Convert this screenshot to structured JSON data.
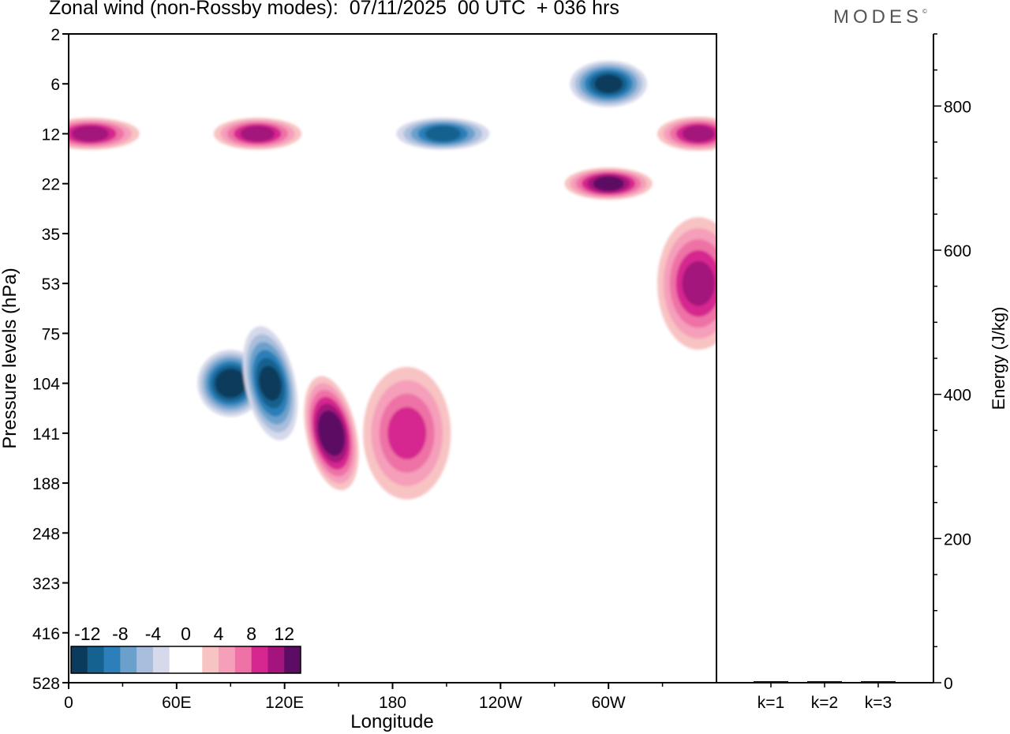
{
  "title": "Zonal wind (non-Rossby modes):  07/11/2025  00 UTC  + 036 hrs",
  "brand": "MODES",
  "brand_mark": "©",
  "chart_data": [
    {
      "type": "heatmap",
      "title": "Zonal wind (non-Rossby modes):  07/11/2025  00 UTC  + 036 hrs",
      "xlabel": "Longitude",
      "ylabel": "Pressure levels (hPa)",
      "x_ticks": [
        {
          "label": "0",
          "lon": 0
        },
        {
          "label": "60E",
          "lon": 60
        },
        {
          "label": "120E",
          "lon": 120
        },
        {
          "label": "180",
          "lon": 180
        },
        {
          "label": "120W",
          "lon": 240
        },
        {
          "label": "60W",
          "lon": 300
        }
      ],
      "xlim": [
        0,
        360
      ],
      "y_levels": [
        "2",
        "6",
        "12",
        "22",
        "35",
        "53",
        "75",
        "104",
        "141",
        "188",
        "248",
        "323",
        "416",
        "528"
      ],
      "colorbar": {
        "labels": [
          "-12",
          "-8",
          "-4",
          "0",
          "4",
          "8",
          "12"
        ],
        "colors": [
          "#0b3b5c",
          "#15618f",
          "#2c7fb8",
          "#6aa0cb",
          "#a8bedc",
          "#d5d9ea",
          "#ffffff",
          "#ffffff",
          "#f8c3c3",
          "#f59fbb",
          "#ee72a6",
          "#d6278f",
          "#a3157c",
          "#5c0d63"
        ]
      },
      "features": [
        {
          "lon": 12,
          "level": "12",
          "value": 10
        },
        {
          "lon": 105,
          "level": "12",
          "value": 9
        },
        {
          "lon": 208,
          "level": "12",
          "value": -9
        },
        {
          "lon": 300,
          "level": "6",
          "value": -11
        },
        {
          "lon": 350,
          "level": "12",
          "value": 10
        },
        {
          "lon": 300,
          "level": "22",
          "value": 11
        },
        {
          "lon": 90,
          "level": "104",
          "value": -13
        },
        {
          "lon": 112,
          "level": "104",
          "value": -12
        },
        {
          "lon": 146,
          "level": "141",
          "value": 13
        },
        {
          "lon": 188,
          "level": "141",
          "value": 8
        },
        {
          "lon": 350,
          "level": "53",
          "value": 9
        }
      ]
    },
    {
      "type": "bar",
      "ylabel": "Energy (J/kg)",
      "categories": [
        "k=1",
        "k=2",
        "k=3"
      ],
      "values": [
        2,
        1,
        1
      ],
      "ylim": [
        0,
        900
      ],
      "y_ticks": [
        "0",
        "200",
        "400",
        "600",
        "800"
      ]
    }
  ]
}
